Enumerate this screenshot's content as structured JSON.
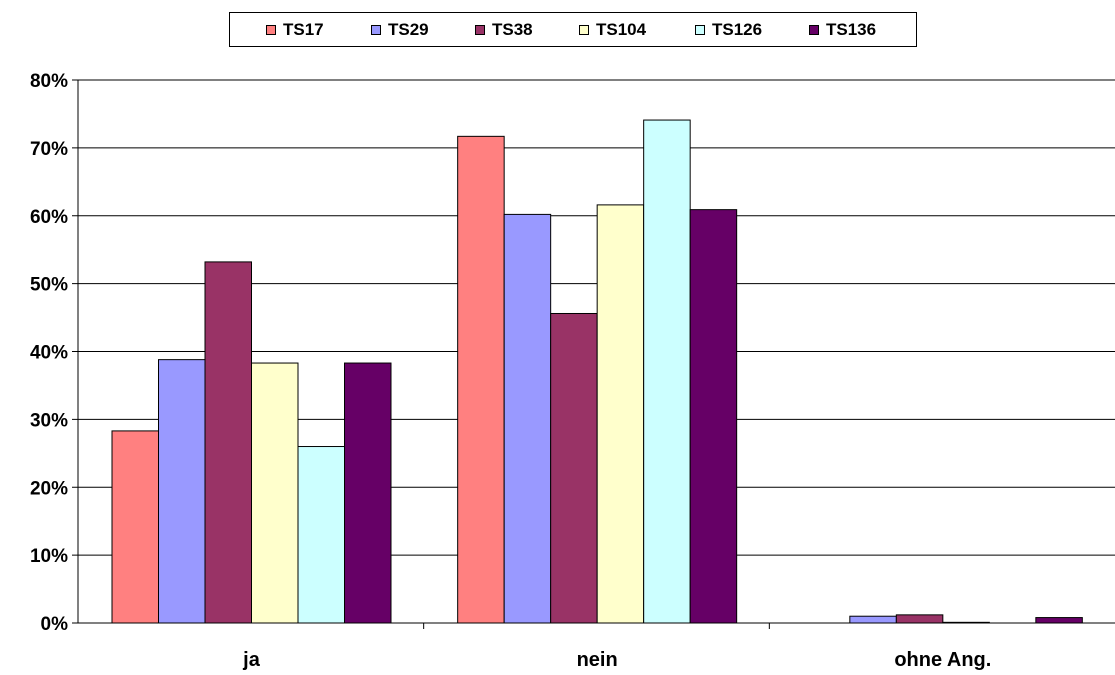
{
  "chart_data": {
    "type": "bar",
    "categories": [
      "ja",
      "nein",
      "ohne Ang."
    ],
    "series": [
      {
        "name": "TS17",
        "color": "#ff8080",
        "values": [
          28.3,
          71.7,
          0.0
        ]
      },
      {
        "name": "TS29",
        "color": "#9999ff",
        "values": [
          38.8,
          60.2,
          1.0
        ]
      },
      {
        "name": "TS38",
        "color": "#993366",
        "values": [
          53.2,
          45.6,
          1.2
        ]
      },
      {
        "name": "TS104",
        "color": "#ffffcc",
        "values": [
          38.3,
          61.6,
          0.1
        ]
      },
      {
        "name": "TS126",
        "color": "#ccffff",
        "values": [
          26.0,
          74.1,
          0.0
        ]
      },
      {
        "name": "TS136",
        "color": "#660066",
        "values": [
          38.3,
          60.9,
          0.8
        ]
      }
    ],
    "ylim": [
      0,
      80
    ],
    "yticks": [
      "0%",
      "10%",
      "20%",
      "30%",
      "40%",
      "50%",
      "60%",
      "70%",
      "80%"
    ],
    "grid": true,
    "legend_position": "top"
  }
}
